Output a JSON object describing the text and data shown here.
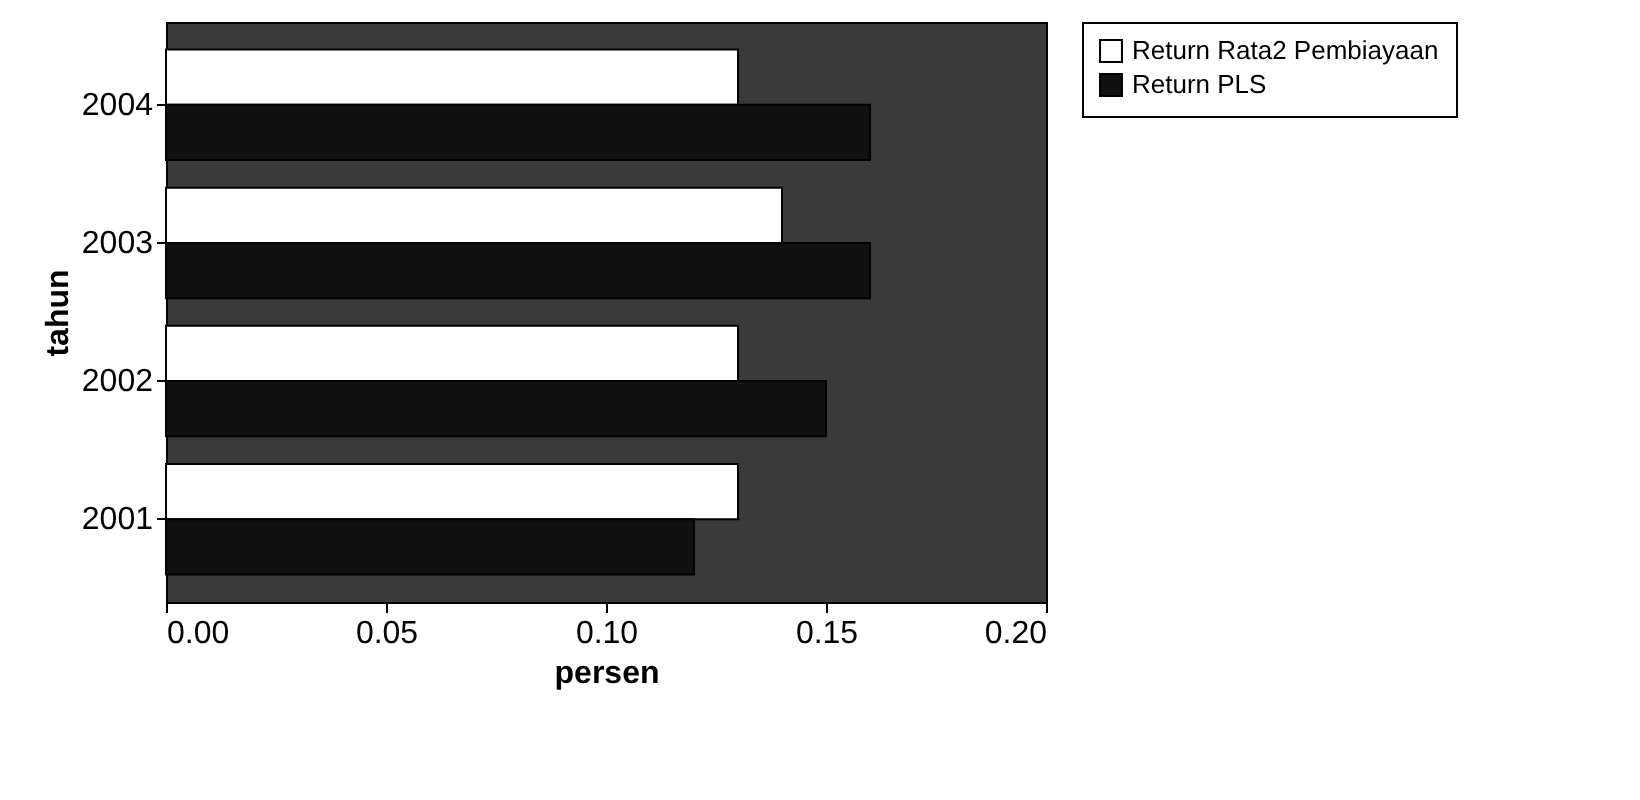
{
  "chart_data": {
    "type": "bar",
    "orientation": "horizontal",
    "xlabel": "persen",
    "ylabel": "tahun",
    "categories": [
      "2004",
      "2003",
      "2002",
      "2001"
    ],
    "series": [
      {
        "name": "Return Rata2 Pembiayaan",
        "color": "#ffffff",
        "values": [
          0.13,
          0.14,
          0.13,
          0.13
        ]
      },
      {
        "name": "Return PLS",
        "color": "#111111",
        "values": [
          0.16,
          0.16,
          0.15,
          0.12
        ]
      }
    ],
    "xlim": [
      0,
      0.2
    ],
    "xticks": [
      {
        "value": 0,
        "label": "0.00"
      },
      {
        "value": 0.05,
        "label": "0.05"
      },
      {
        "value": 0.1,
        "label": "0.10"
      },
      {
        "value": 0.15,
        "label": "0.15"
      },
      {
        "value": 0.2,
        "label": "0.20"
      }
    ],
    "grid": false,
    "legend": "right"
  }
}
